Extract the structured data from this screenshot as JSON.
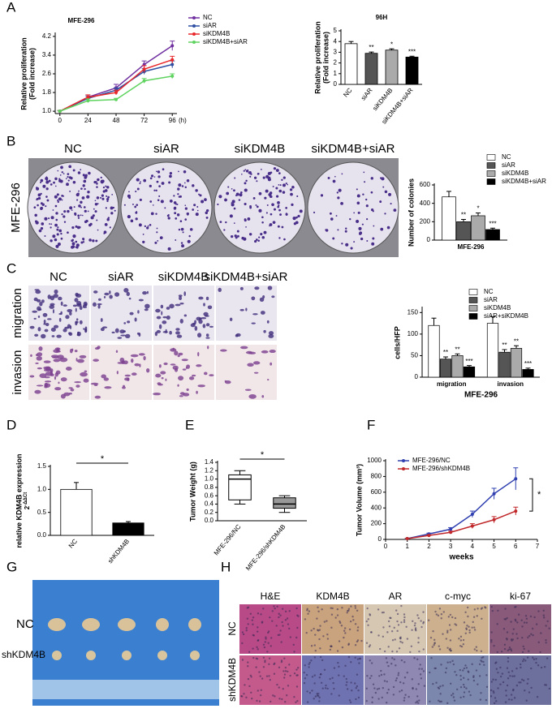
{
  "panels": {
    "labels": [
      "A",
      "B",
      "C",
      "D",
      "E",
      "F",
      "G",
      "H"
    ]
  },
  "colony_images": {
    "columns": [
      "NC",
      "siAR",
      "siKDM4B",
      "siKDM4B+siAR"
    ],
    "row": "MFE-296"
  },
  "transwell_images": {
    "columns": [
      "NC",
      "siAR",
      "siKDM4B",
      "siKDM4B+siAR"
    ],
    "rows": [
      "migration",
      "invasion"
    ]
  },
  "tumor_photo": {
    "rows": [
      "NC",
      "shKDM4B"
    ]
  },
  "ihc_images": {
    "columns": [
      "H&E",
      "KDM4B",
      "AR",
      "c-myc",
      "ki-67"
    ],
    "rows": [
      "NC",
      "shKDM4B"
    ]
  },
  "chart_data": [
    {
      "type": "line",
      "title": "MFE-296",
      "ylabel": [
        "Relative proliferation",
        "(Fold increase)"
      ],
      "x": [
        0,
        24,
        48,
        72,
        96
      ],
      "x_unit": "(h)",
      "xlim": [
        -4,
        100
      ],
      "xticks": [
        0,
        24,
        48,
        72,
        96
      ],
      "ylim": [
        0.9,
        4.3
      ],
      "yticks": [
        {
          "value": 1,
          "label": "1.0"
        },
        1.8,
        2.6,
        3.4,
        4.2
      ],
      "series": [
        {
          "name": "NC",
          "color": "#7030a0",
          "values": [
            1.0,
            1.6,
            2.0,
            3.0,
            3.8
          ],
          "errors": [
            0.03,
            0.1,
            0.15,
            0.15,
            0.2
          ]
        },
        {
          "name": "siAR",
          "color": "#2e4fa3",
          "values": [
            1.0,
            1.55,
            1.9,
            2.7,
            3.0
          ],
          "errors": [
            0.03,
            0.1,
            0.1,
            0.12,
            0.15
          ]
        },
        {
          "name": "siKDM4B",
          "color": "#e8282b",
          "values": [
            1.0,
            1.6,
            1.8,
            2.8,
            3.2
          ],
          "errors": [
            0.03,
            0.1,
            0.1,
            0.15,
            0.15
          ]
        },
        {
          "name": "siKDM4B+siAR",
          "color": "#5fd35f",
          "values": [
            1.0,
            1.45,
            1.5,
            2.3,
            2.5
          ],
          "errors": [
            0.03,
            0.08,
            0.05,
            0.1,
            0.1
          ]
        }
      ]
    },
    {
      "type": "bar",
      "title": "96H",
      "ylabel": [
        "Relative proliferation",
        "(Fold increase)"
      ],
      "categories": [
        "NC",
        "siAR",
        "siKDM4B",
        "siKDM4B+siAR"
      ],
      "values": [
        3.8,
        2.9,
        3.2,
        2.55
      ],
      "errors": [
        0.2,
        0.12,
        0.12,
        0.08
      ],
      "significance": [
        null,
        "**",
        "*",
        "***"
      ],
      "colors": [
        "#ffffff",
        "#555555",
        "#aaaaaa",
        "#000000"
      ],
      "ylim": [
        0,
        5
      ],
      "yticks": [
        0,
        1,
        2,
        3,
        4,
        5
      ]
    },
    {
      "type": "bar",
      "ylabel": [
        "Number of colonies"
      ],
      "categories": [
        "MFE-296"
      ],
      "ylim": [
        0,
        600
      ],
      "yticks": [
        0,
        200,
        400,
        600
      ],
      "series": [
        {
          "name": "NC",
          "color": "#ffffff",
          "values": [
            470
          ],
          "errors": [
            60
          ],
          "significance": [
            null
          ]
        },
        {
          "name": "siAR",
          "color": "#555555",
          "values": [
            200
          ],
          "errors": [
            25
          ],
          "significance": [
            "**"
          ]
        },
        {
          "name": "siKDM4B",
          "color": "#aaaaaa",
          "values": [
            265
          ],
          "errors": [
            30
          ],
          "significance": [
            "*"
          ]
        },
        {
          "name": "siKDM4B+siAR",
          "color": "#000000",
          "values": [
            115
          ],
          "errors": [
            15
          ],
          "significance": [
            "***"
          ]
        }
      ]
    },
    {
      "type": "bar",
      "ylabel": [
        "cells/HFP"
      ],
      "xlabel": "MFE-296",
      "categories": [
        "migration",
        "invasion"
      ],
      "ylim": [
        0,
        160
      ],
      "yticks": [
        0,
        50,
        100,
        150
      ],
      "series": [
        {
          "name": "NC",
          "color": "#ffffff",
          "values": [
            120,
            125
          ],
          "errors": [
            17,
            15
          ],
          "significance": [
            null,
            null
          ]
        },
        {
          "name": "siAR",
          "color": "#555555",
          "values": [
            42,
            58
          ],
          "errors": [
            5,
            6
          ],
          "significance": [
            "**",
            "**"
          ]
        },
        {
          "name": "siKDM4B",
          "color": "#aaaaaa",
          "values": [
            50,
            67
          ],
          "errors": [
            4,
            6
          ],
          "significance": [
            "**",
            "**"
          ]
        },
        {
          "name": "siAR+siKDM4B",
          "color": "#000000",
          "values": [
            24,
            18
          ],
          "errors": [
            3,
            3
          ],
          "significance": [
            "***",
            "***"
          ]
        }
      ]
    },
    {
      "type": "bar",
      "ylabel": [
        "relative KDM4B expression"
      ],
      "ylabel_formula": {
        "base": "2",
        "exponent": "-ΔΔCt"
      },
      "categories": [
        "NC",
        "shKDM4B"
      ],
      "values": [
        1.0,
        0.27
      ],
      "errors": [
        0.15,
        0.03
      ],
      "colors": [
        "#ffffff",
        "#000000"
      ],
      "ylim": [
        0,
        1.5
      ],
      "yticks": [
        {
          "value": 0,
          "label": "0.0"
        },
        0.5,
        {
          "value": 1,
          "label": "1.0"
        },
        1.5
      ],
      "significance_bracket": "*"
    },
    {
      "type": "box",
      "ylabel": [
        "Tumor Weight (g)"
      ],
      "categories": [
        "MFE-296/NC",
        "MFE-296/shKDM4B"
      ],
      "boxes": [
        {
          "min": 0.4,
          "q1": 0.5,
          "median": 1.0,
          "q3": 1.1,
          "max": 1.2
        },
        {
          "min": 0.2,
          "q1": 0.3,
          "median": 0.4,
          "q3": 0.55,
          "max": 0.6
        }
      ],
      "colors": [
        "#ffffff",
        "#999999"
      ],
      "ylim": [
        0,
        1.4
      ],
      "yticks": [
        {
          "value": 0,
          "label": "0.0"
        },
        0.2,
        0.4,
        0.6,
        0.8,
        {
          "value": 1,
          "label": "1.0"
        },
        1.2,
        1.4
      ],
      "significance_bracket": "*"
    },
    {
      "type": "line",
      "ylabel": [
        "Tumor Volume (mm³)"
      ],
      "xlabel": "weeks",
      "x": [
        1,
        2,
        3,
        4,
        5,
        6
      ],
      "xlim": [
        0,
        7
      ],
      "xticks": [
        0,
        1,
        2,
        3,
        4,
        5,
        6,
        7
      ],
      "ylim": [
        0,
        1000
      ],
      "yticks": [
        0,
        200,
        400,
        600,
        800,
        1000
      ],
      "significance_bracket": "*",
      "series": [
        {
          "name": "MFE-296/NC",
          "color": "#3040b0",
          "values": [
            10,
            70,
            130,
            320,
            580,
            770
          ],
          "errors": [
            5,
            10,
            20,
            40,
            70,
            140
          ]
        },
        {
          "name": "MFE-296/shKDM4B",
          "color": "#c0282b",
          "values": [
            10,
            50,
            90,
            170,
            250,
            360
          ],
          "errors": [
            5,
            8,
            15,
            30,
            40,
            50
          ]
        }
      ]
    }
  ]
}
